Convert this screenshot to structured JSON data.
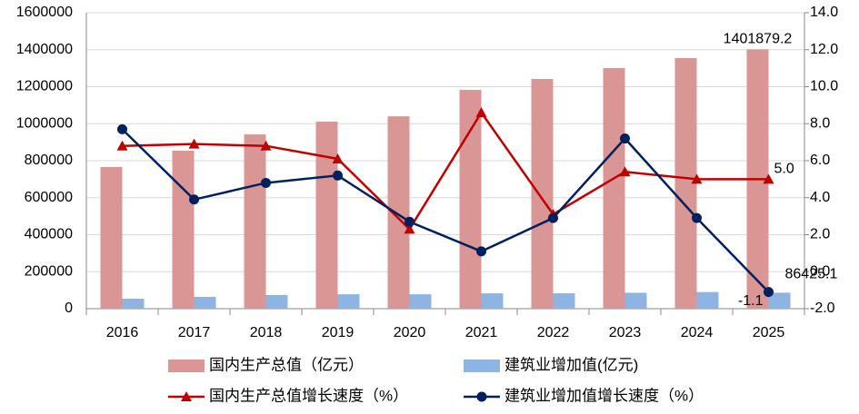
{
  "chart_data": {
    "type": "combo",
    "categories": [
      "2016",
      "2017",
      "2018",
      "2019",
      "2020",
      "2021",
      "2022",
      "2023",
      "2024",
      "2025"
    ],
    "series": [
      {
        "name": "国内生产总值（亿元）",
        "type": "bar",
        "color": "#d99694",
        "values": [
          766000,
          854000,
          942000,
          1011000,
          1040000,
          1183000,
          1242000,
          1301000,
          1355000,
          1401879.2
        ],
        "value_labels": [
          null,
          null,
          null,
          null,
          null,
          null,
          null,
          null,
          null,
          "1401879.2"
        ]
      },
      {
        "name": "建筑业增加值(亿元)",
        "type": "bar",
        "color": "#8db4e2",
        "values": [
          54000,
          64000,
          74000,
          78000,
          78000,
          83000,
          83000,
          86000,
          90000,
          86425.1
        ],
        "value_labels": [
          null,
          null,
          null,
          null,
          null,
          null,
          null,
          null,
          null,
          "86425.1"
        ]
      },
      {
        "name": "国内生产总值增长速度（%）",
        "type": "line",
        "marker": "triangle",
        "color": "#c00000",
        "axis": "y2",
        "values": [
          6.8,
          6.9,
          6.8,
          6.1,
          2.3,
          8.6,
          3.1,
          5.4,
          5.0,
          5.0
        ],
        "value_labels": [
          null,
          null,
          null,
          null,
          null,
          null,
          null,
          null,
          null,
          "5.0"
        ]
      },
      {
        "name": "建筑业增加值增长速度（%）",
        "type": "line",
        "marker": "circle",
        "color": "#002060",
        "axis": "y2",
        "values": [
          7.7,
          3.9,
          4.8,
          5.2,
          2.7,
          1.1,
          2.9,
          7.2,
          2.9,
          -1.1
        ],
        "value_labels": [
          null,
          null,
          null,
          null,
          null,
          null,
          null,
          null,
          null,
          "-1.1"
        ]
      }
    ],
    "ylim": [
      0,
      1600000
    ],
    "yticks": [
      0,
      200000,
      400000,
      600000,
      800000,
      1000000,
      1200000,
      1400000,
      1600000
    ],
    "y2lim": [
      -2,
      14
    ],
    "y2ticks": [
      {
        "value": -2,
        "label": "-2.0"
      },
      {
        "value": 0,
        "label": "0.0"
      },
      {
        "value": 2,
        "label": "2.0"
      },
      {
        "value": 4,
        "label": "4.0"
      },
      {
        "value": 6,
        "label": "6.0"
      },
      {
        "value": 8,
        "label": "8.0"
      },
      {
        "value": 10,
        "label": "10.0"
      },
      {
        "value": 12,
        "label": "12.0"
      },
      {
        "value": 14,
        "label": "14.0"
      }
    ],
    "grid": true
  }
}
